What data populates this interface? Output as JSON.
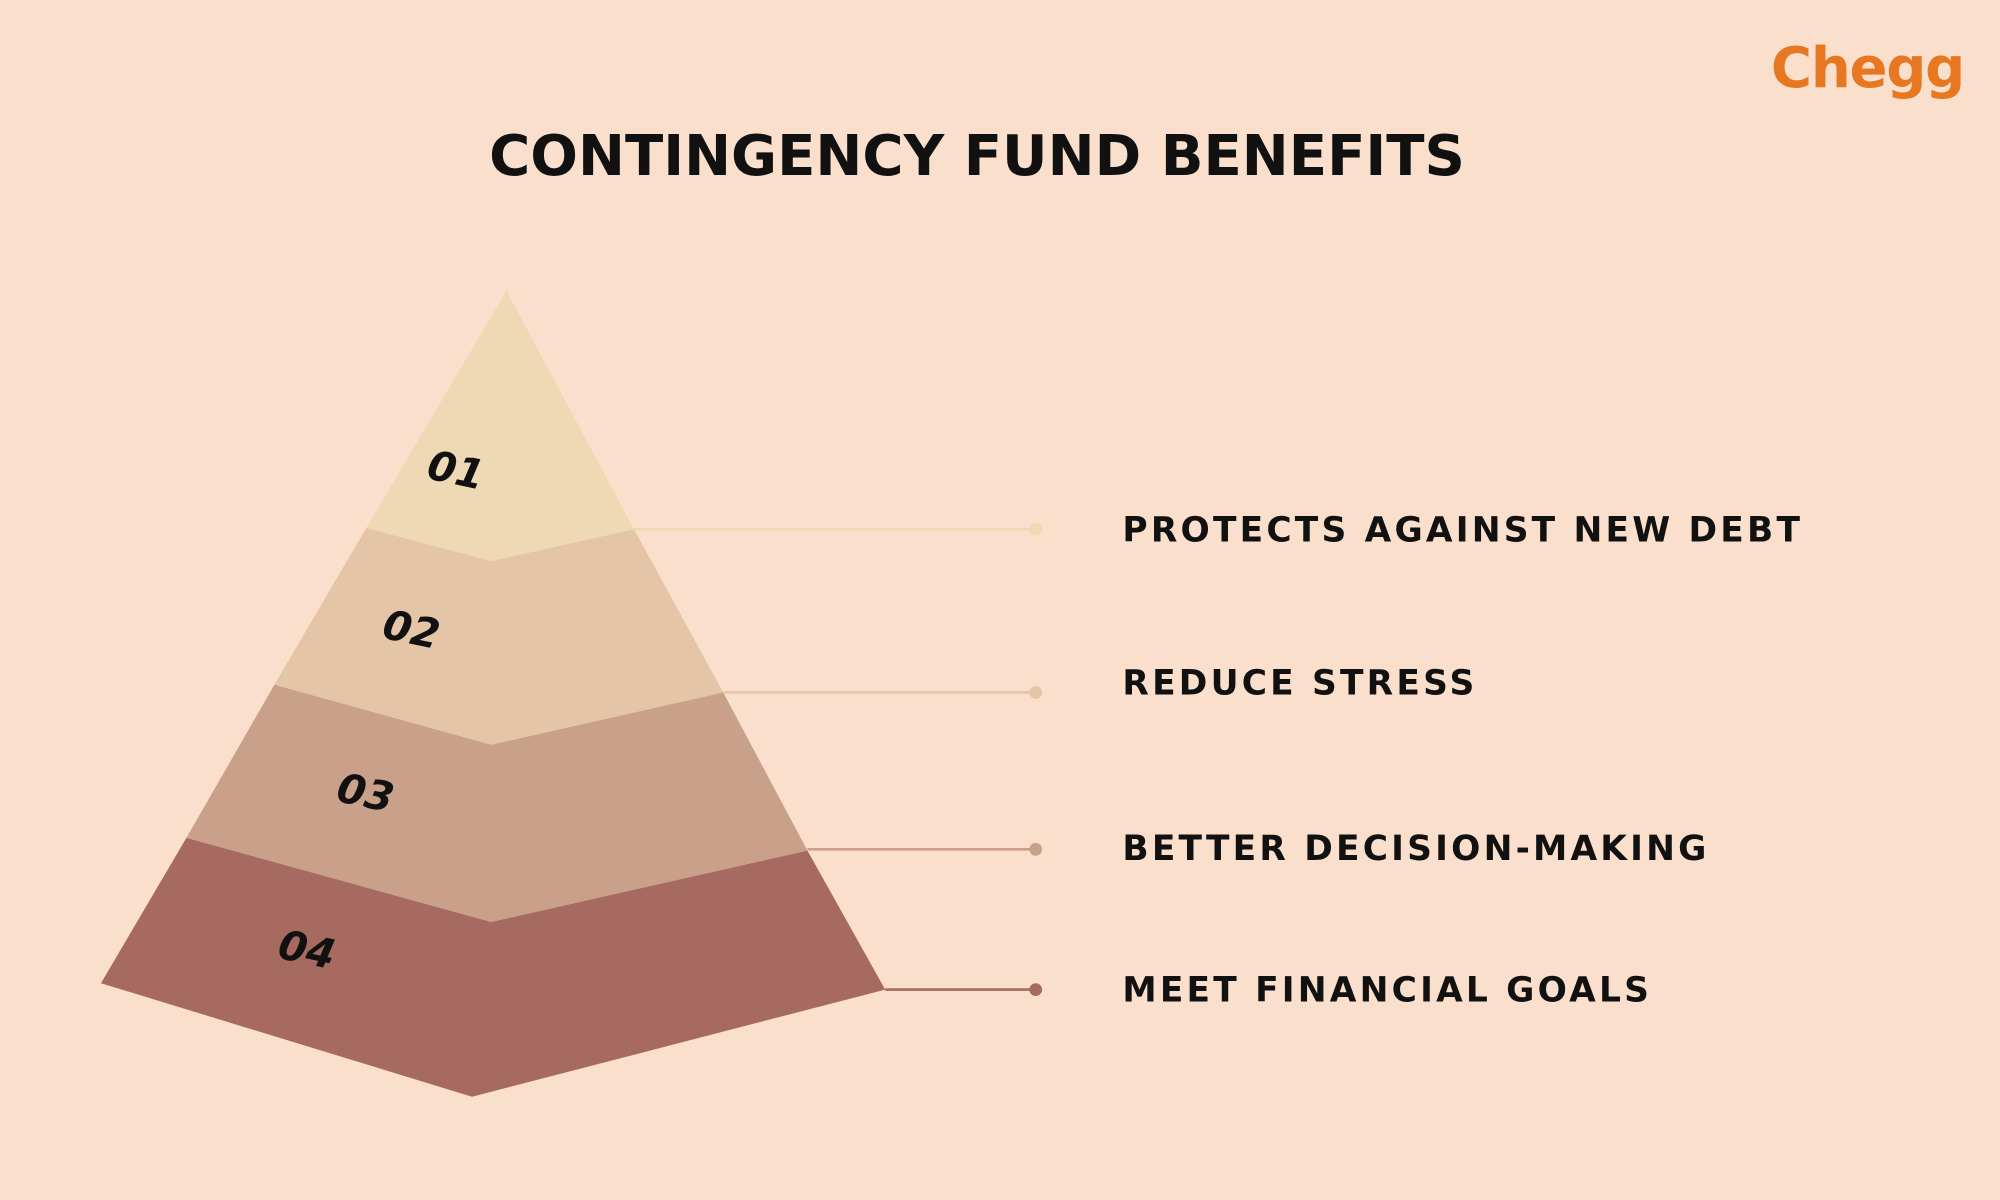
{
  "logo": "Chegg",
  "title": "CONTINGENCY FUND BENEFITS",
  "levels": [
    {
      "number": "01",
      "label": "PROTECTS AGAINST NEW DEBT"
    },
    {
      "number": "02",
      "label": "REDUCE STRESS"
    },
    {
      "number": "03",
      "label": "BETTER DECISION-MAKING"
    },
    {
      "number": "04",
      "label": "MEET FINANCIAL GOALS"
    }
  ]
}
